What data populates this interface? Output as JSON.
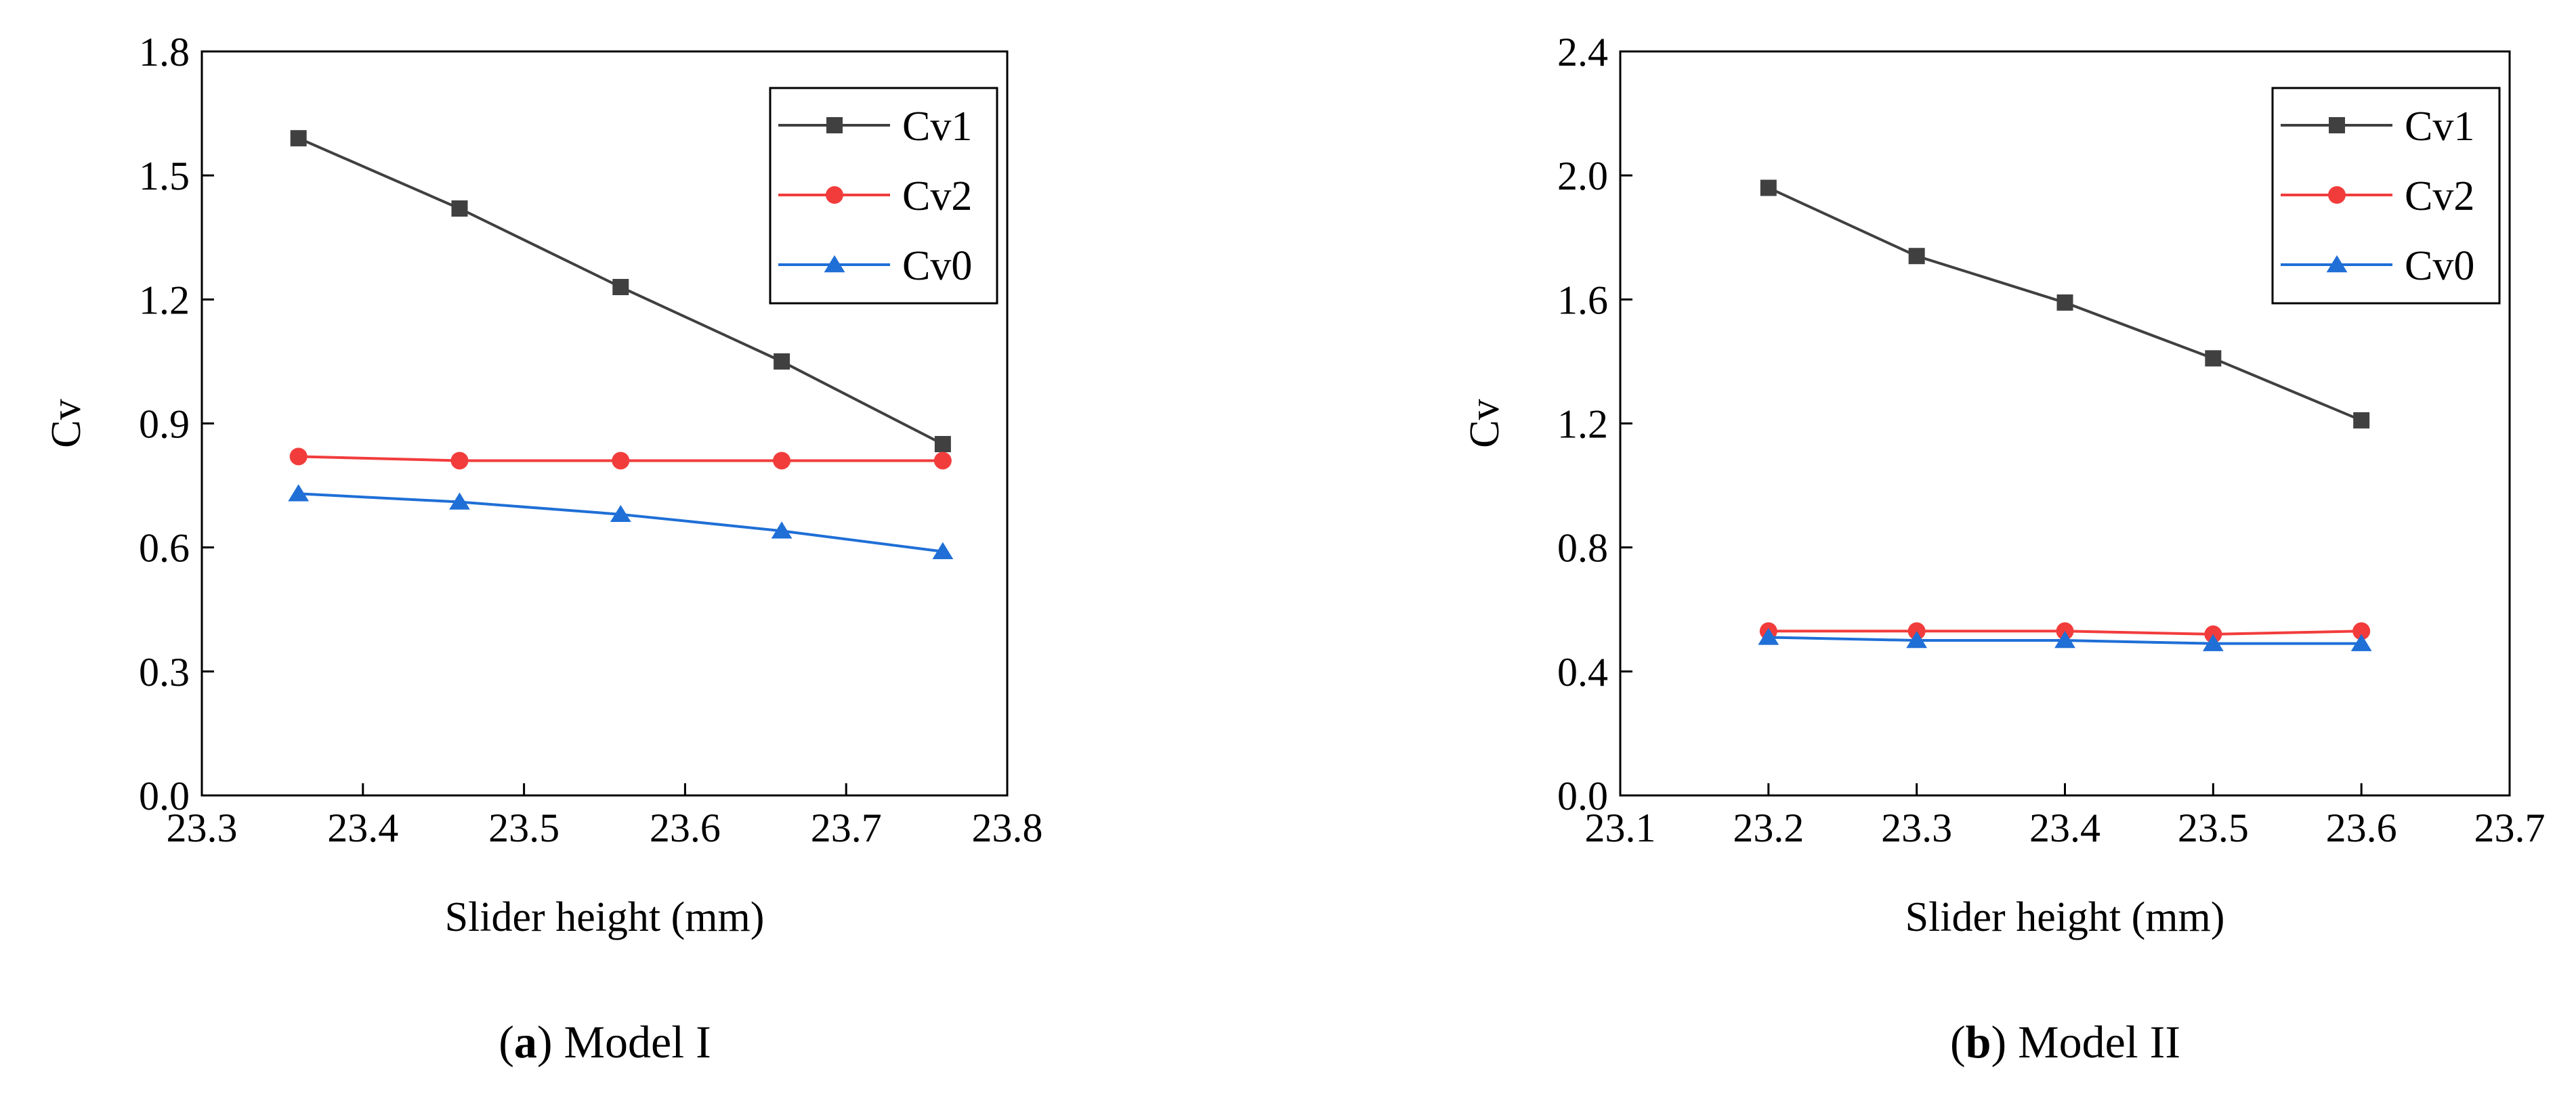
{
  "chart_data": [
    {
      "type": "line",
      "panel": "a",
      "caption": {
        "letter": "a",
        "text": " Model I"
      },
      "xlabel": "Slider height (mm)",
      "ylabel": "Cv",
      "xlim": [
        23.3,
        23.8
      ],
      "ylim": [
        0.0,
        1.8
      ],
      "xticks": [
        23.3,
        23.4,
        23.5,
        23.6,
        23.7,
        23.8
      ],
      "xtick_labels": [
        "23.3",
        "23.4",
        "23.5",
        "23.6",
        "23.7",
        "23.8"
      ],
      "yticks": [
        0.0,
        0.3,
        0.6,
        0.9,
        1.2,
        1.5,
        1.8
      ],
      "ytick_labels": [
        "0.0",
        "0.3",
        "0.6",
        "0.9",
        "1.2",
        "1.5",
        "1.8"
      ],
      "legend_position": "top-right",
      "x": [
        23.36,
        23.46,
        23.56,
        23.66,
        23.76
      ],
      "series": [
        {
          "name": "Cv1",
          "color": "#404040",
          "marker": "square",
          "values": [
            1.59,
            1.42,
            1.23,
            1.05,
            0.85
          ]
        },
        {
          "name": "Cv2",
          "color": "#f23c3c",
          "marker": "circle",
          "values": [
            0.82,
            0.81,
            0.81,
            0.81,
            0.81
          ]
        },
        {
          "name": "Cv0",
          "color": "#1f6fd6",
          "marker": "triangle",
          "values": [
            0.73,
            0.71,
            0.68,
            0.64,
            0.59
          ]
        }
      ]
    },
    {
      "type": "line",
      "panel": "b",
      "caption": {
        "letter": "b",
        "text": " Model II"
      },
      "xlabel": "Slider height (mm)",
      "ylabel": "Cv",
      "xlim": [
        23.1,
        23.7
      ],
      "ylim": [
        0.0,
        2.4
      ],
      "xticks": [
        23.1,
        23.2,
        23.3,
        23.4,
        23.5,
        23.6,
        23.7
      ],
      "xtick_labels": [
        "23.1",
        "23.2",
        "23.3",
        "23.4",
        "23.5",
        "23.6",
        "23.7"
      ],
      "yticks": [
        0.0,
        0.4,
        0.8,
        1.2,
        1.6,
        2.0,
        2.4
      ],
      "ytick_labels": [
        "0.0",
        "0.4",
        "0.8",
        "1.2",
        "1.6",
        "2.0",
        "2.4"
      ],
      "legend_position": "top-right",
      "x": [
        23.2,
        23.3,
        23.4,
        23.5,
        23.6
      ],
      "series": [
        {
          "name": "Cv1",
          "color": "#404040",
          "marker": "square",
          "values": [
            1.96,
            1.74,
            1.59,
            1.41,
            1.21
          ]
        },
        {
          "name": "Cv2",
          "color": "#f23c3c",
          "marker": "circle",
          "values": [
            0.53,
            0.53,
            0.53,
            0.52,
            0.53
          ]
        },
        {
          "name": "Cv0",
          "color": "#1f6fd6",
          "marker": "triangle",
          "values": [
            0.51,
            0.5,
            0.5,
            0.49,
            0.49
          ]
        }
      ]
    }
  ]
}
